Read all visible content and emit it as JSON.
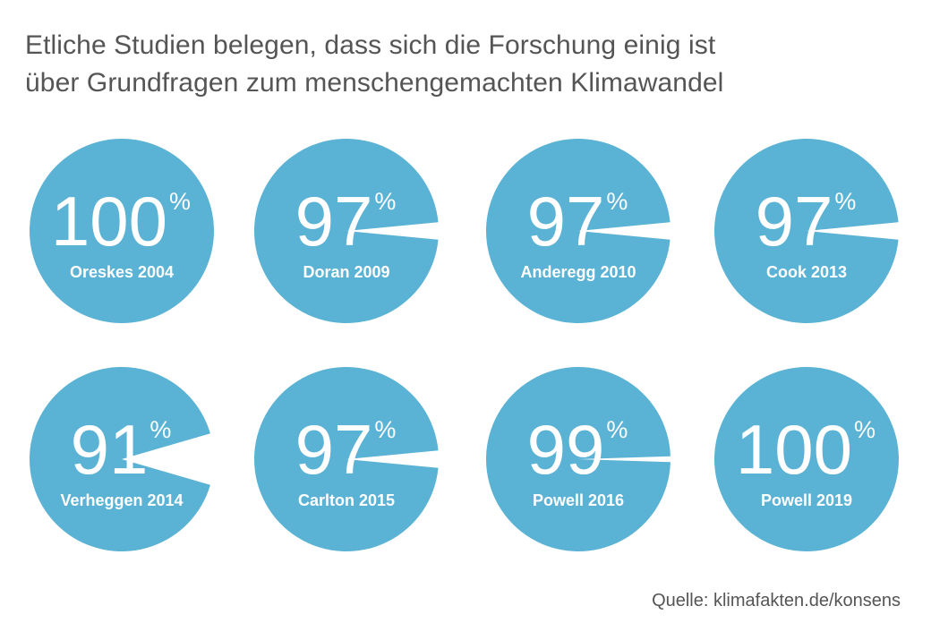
{
  "title_lines": [
    "Etliche Studien belegen, dass sich die Forschung einig ist",
    "über Grundfragen zum menschengemachten Klimawandel"
  ],
  "source": "Quelle: klimafakten.de/konsens",
  "colors": {
    "circle": "#5ab2d4",
    "text": "#ffffff",
    "title": "#555555",
    "background": "#ffffff"
  },
  "chart_data": {
    "type": "pie",
    "unit": "%",
    "studies": [
      {
        "label": "Oreskes 2004",
        "value": 100
      },
      {
        "label": "Doran 2009",
        "value": 97
      },
      {
        "label": "Anderegg 2010",
        "value": 97
      },
      {
        "label": "Cook 2013",
        "value": 97
      },
      {
        "label": "Verheggen 2014",
        "value": 91
      },
      {
        "label": "Carlton 2015",
        "value": 97
      },
      {
        "label": "Powell 2016",
        "value": 99
      },
      {
        "label": "Powell 2019",
        "value": 100
      }
    ]
  }
}
